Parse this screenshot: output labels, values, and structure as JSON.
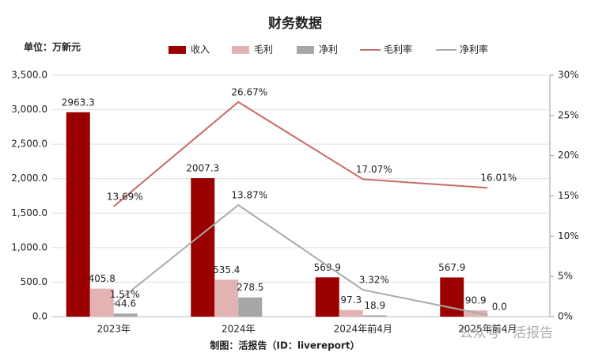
{
  "chart_data": {
    "type": "bar-line",
    "title": "财务数据",
    "unit_label": "单位：万新元",
    "footer": "制图：活报告（ID：livereport）",
    "watermark": "公众号 · 活报告",
    "categories": [
      "2023年",
      "2024年",
      "2024年前4月",
      "2025年前4月"
    ],
    "series": [
      {
        "name": "收入",
        "type": "bar",
        "color": "#9b0000",
        "values": [
          2963.3,
          2007.3,
          569.9,
          567.9
        ],
        "value_labels": [
          "2963.3",
          "2007.3",
          "569.9",
          "567.9"
        ]
      },
      {
        "name": "毛利",
        "type": "bar",
        "color": "#e3b2b2",
        "values": [
          405.8,
          535.4,
          97.3,
          90.9
        ],
        "value_labels": [
          "405.8",
          "535.4",
          "97.3",
          "90.9"
        ]
      },
      {
        "name": "净利",
        "type": "bar",
        "color": "#a6a6a6",
        "values": [
          44.6,
          278.5,
          18.9,
          0
        ],
        "value_labels": [
          "44.6",
          "278.5",
          "18.9",
          "0.0"
        ]
      },
      {
        "name": "毛利率",
        "type": "line",
        "axis": "y2",
        "color": "#c86a66",
        "values": [
          13.69,
          26.67,
          17.07,
          16.01
        ],
        "value_labels": [
          "13.69%",
          "26.67%",
          "17.07%",
          "16.01%"
        ]
      },
      {
        "name": "净利率",
        "type": "line",
        "axis": "y2",
        "color": "#aaaaaa",
        "values": [
          1.51,
          13.87,
          3.32,
          0.2
        ],
        "value_labels": [
          "1.51%",
          "13.87%",
          "3.32%",
          null
        ]
      }
    ],
    "ylim": [
      0,
      3500
    ],
    "yticks": [
      {
        "value": 0,
        "label": "0.0"
      },
      {
        "value": 500,
        "label": "500.0"
      },
      {
        "value": 1000,
        "label": "1,000.0"
      },
      {
        "value": 1500,
        "label": "1,500.0"
      },
      {
        "value": 2000,
        "label": "2,000.0"
      },
      {
        "value": 2500,
        "label": "2,500.0"
      },
      {
        "value": 3000,
        "label": "3,000.0"
      },
      {
        "value": 3500,
        "label": "3,500.0"
      }
    ],
    "y2lim": [
      0,
      30
    ],
    "y2ticks": [
      {
        "value": 0,
        "label": "0%"
      },
      {
        "value": 5,
        "label": "5%"
      },
      {
        "value": 10,
        "label": "10%"
      },
      {
        "value": 15,
        "label": "15%"
      },
      {
        "value": 20,
        "label": "20%"
      },
      {
        "value": 25,
        "label": "25%"
      },
      {
        "value": 30,
        "label": "30%"
      }
    ],
    "grid": true
  }
}
